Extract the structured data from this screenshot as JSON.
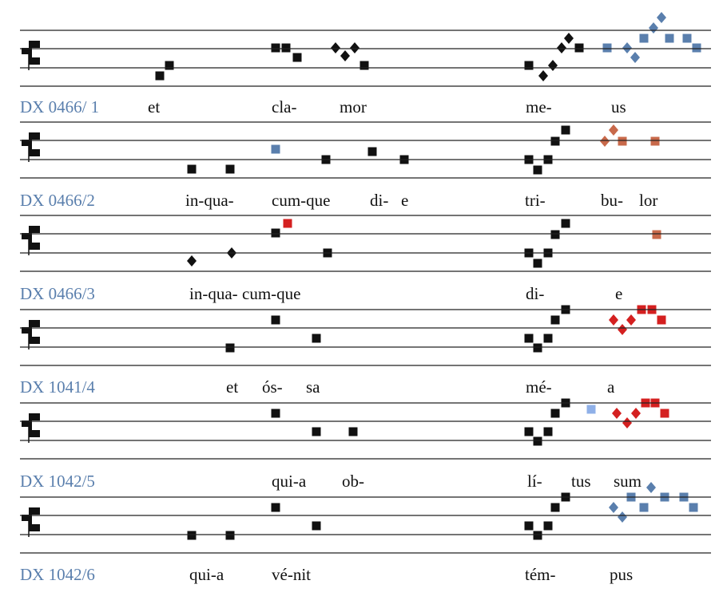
{
  "rows": [
    {
      "label": "DX 0466/ 1",
      "syllables": [
        "et",
        "cla-",
        "mor",
        "me-",
        "us"
      ]
    },
    {
      "label": "DX 0466/2",
      "syllables": [
        "in-qua-",
        "cum-que",
        "di-",
        "e",
        "tri-",
        "bu-",
        "lor"
      ]
    },
    {
      "label": "DX 0466/3",
      "syllables": [
        "in-qua-",
        "cum-que",
        "di-",
        "e"
      ]
    },
    {
      "label": "DX 1041/4",
      "syllables": [
        "et",
        "ós-",
        "sa",
        "mé-",
        "a"
      ]
    },
    {
      "label": "DX 1042/5",
      "syllables": [
        "qui-a",
        "ob-",
        "lí-",
        "tus",
        "sum"
      ]
    },
    {
      "label": "DX 1042/6",
      "syllables": [
        "qui-a",
        "vé-nit",
        "tém-",
        "pus"
      ]
    }
  ]
}
